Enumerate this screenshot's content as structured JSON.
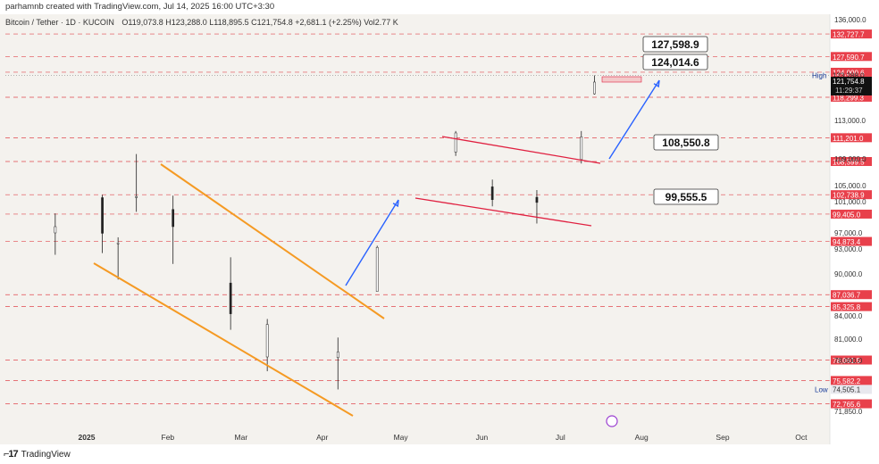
{
  "header": {
    "creator": "parhamnb created with TradingView.com, Jul 14, 2025 16:00 UTC+3:30",
    "symbol_line": "Bitcoin / Tether · 1D · KUCOIN",
    "ohlc": "O119,073.8 H123,288.0 L118,895.5 C121,754.8 +2,681.1 (+2.25%) Vol2.77 K"
  },
  "footer": {
    "brand": "TradingView"
  },
  "colors": {
    "up": "#222222",
    "down": "#222222",
    "level_line": "#e0484f",
    "level_label": "#e8404b",
    "channel": "#f59a23",
    "flag": "#e02040",
    "arrow": "#2962ff",
    "bg": "#f4f2ee"
  },
  "chart_data": {
    "type": "candlestick",
    "title": "Bitcoin / Tether · 1D · KUCOIN",
    "x_ticks": [
      "2025",
      "Feb",
      "Mar",
      "Apr",
      "May",
      "Jun",
      "Jul",
      "Aug",
      "Sep",
      "Oct"
    ],
    "y_ticks": [
      "136,000.0",
      "113,000.0",
      "109,000.0",
      "105,000.0",
      "101,000.0",
      "97,000.0",
      "93,000.0",
      "90,000.0",
      "84,000.0",
      "81,000.0",
      "78,000.0",
      "71,850.0"
    ],
    "y_range": [
      70000,
      138000
    ],
    "price_levels": [
      "132,727.7",
      "127,590.7",
      "124,000.6",
      "118,299.3",
      "111,201.0",
      "108,599.5",
      "102,738.9",
      "99,405.0",
      "94,873.4",
      "87,036.7",
      "85,325.8",
      "78,061.5",
      "75,582.2",
      "72,765.6"
    ],
    "current_price": "121,754.8",
    "countdown": "11:29:37",
    "high_label": "High",
    "high_value": "123,288.0",
    "low_label": "Low",
    "low_value": "74,505.1",
    "targets": [
      "127,598.9",
      "124,014.6",
      "108,550.8",
      "99,555.5"
    ],
    "candles_approx": [
      {
        "date": "2024-12-20",
        "open": 97000,
        "close": 97800,
        "high": 99500,
        "low": 92300
      },
      {
        "date": "2025-01-07",
        "open": 102000,
        "close": 96900,
        "high": 102700,
        "low": 92500
      },
      {
        "date": "2025-01-13",
        "open": 94500,
        "close": 94500,
        "high": 95900,
        "low": 89200
      },
      {
        "date": "2025-01-20",
        "open": 102000,
        "close": 102300,
        "high": 109500,
        "low": 99700
      },
      {
        "date": "2025-02-03",
        "open": 100000,
        "close": 97800,
        "high": 102500,
        "low": 91200
      },
      {
        "date": "2025-02-25",
        "open": 88700,
        "close": 84300,
        "high": 92000,
        "low": 82200
      },
      {
        "date": "2025-03-11",
        "open": 78500,
        "close": 82900,
        "high": 83600,
        "low": 76700
      },
      {
        "date": "2025-04-07",
        "open": 78400,
        "close": 79200,
        "high": 81200,
        "low": 74500
      },
      {
        "date": "2025-04-22",
        "open": 87500,
        "close": 93400,
        "high": 93800,
        "low": 87600
      },
      {
        "date": "2025-05-22",
        "open": 109700,
        "close": 111700,
        "high": 111900,
        "low": 109300
      },
      {
        "date": "2025-06-05",
        "open": 104700,
        "close": 101500,
        "high": 105900,
        "low": 100400
      },
      {
        "date": "2025-06-22",
        "open": 102100,
        "close": 100900,
        "high": 103900,
        "low": 98200
      },
      {
        "date": "2025-07-09",
        "open": 108900,
        "close": 111300,
        "high": 111900,
        "low": 108300
      },
      {
        "date": "2025-07-14",
        "open": 119073.8,
        "close": 121754.8,
        "high": 123288.0,
        "low": 118895.5
      }
    ]
  }
}
